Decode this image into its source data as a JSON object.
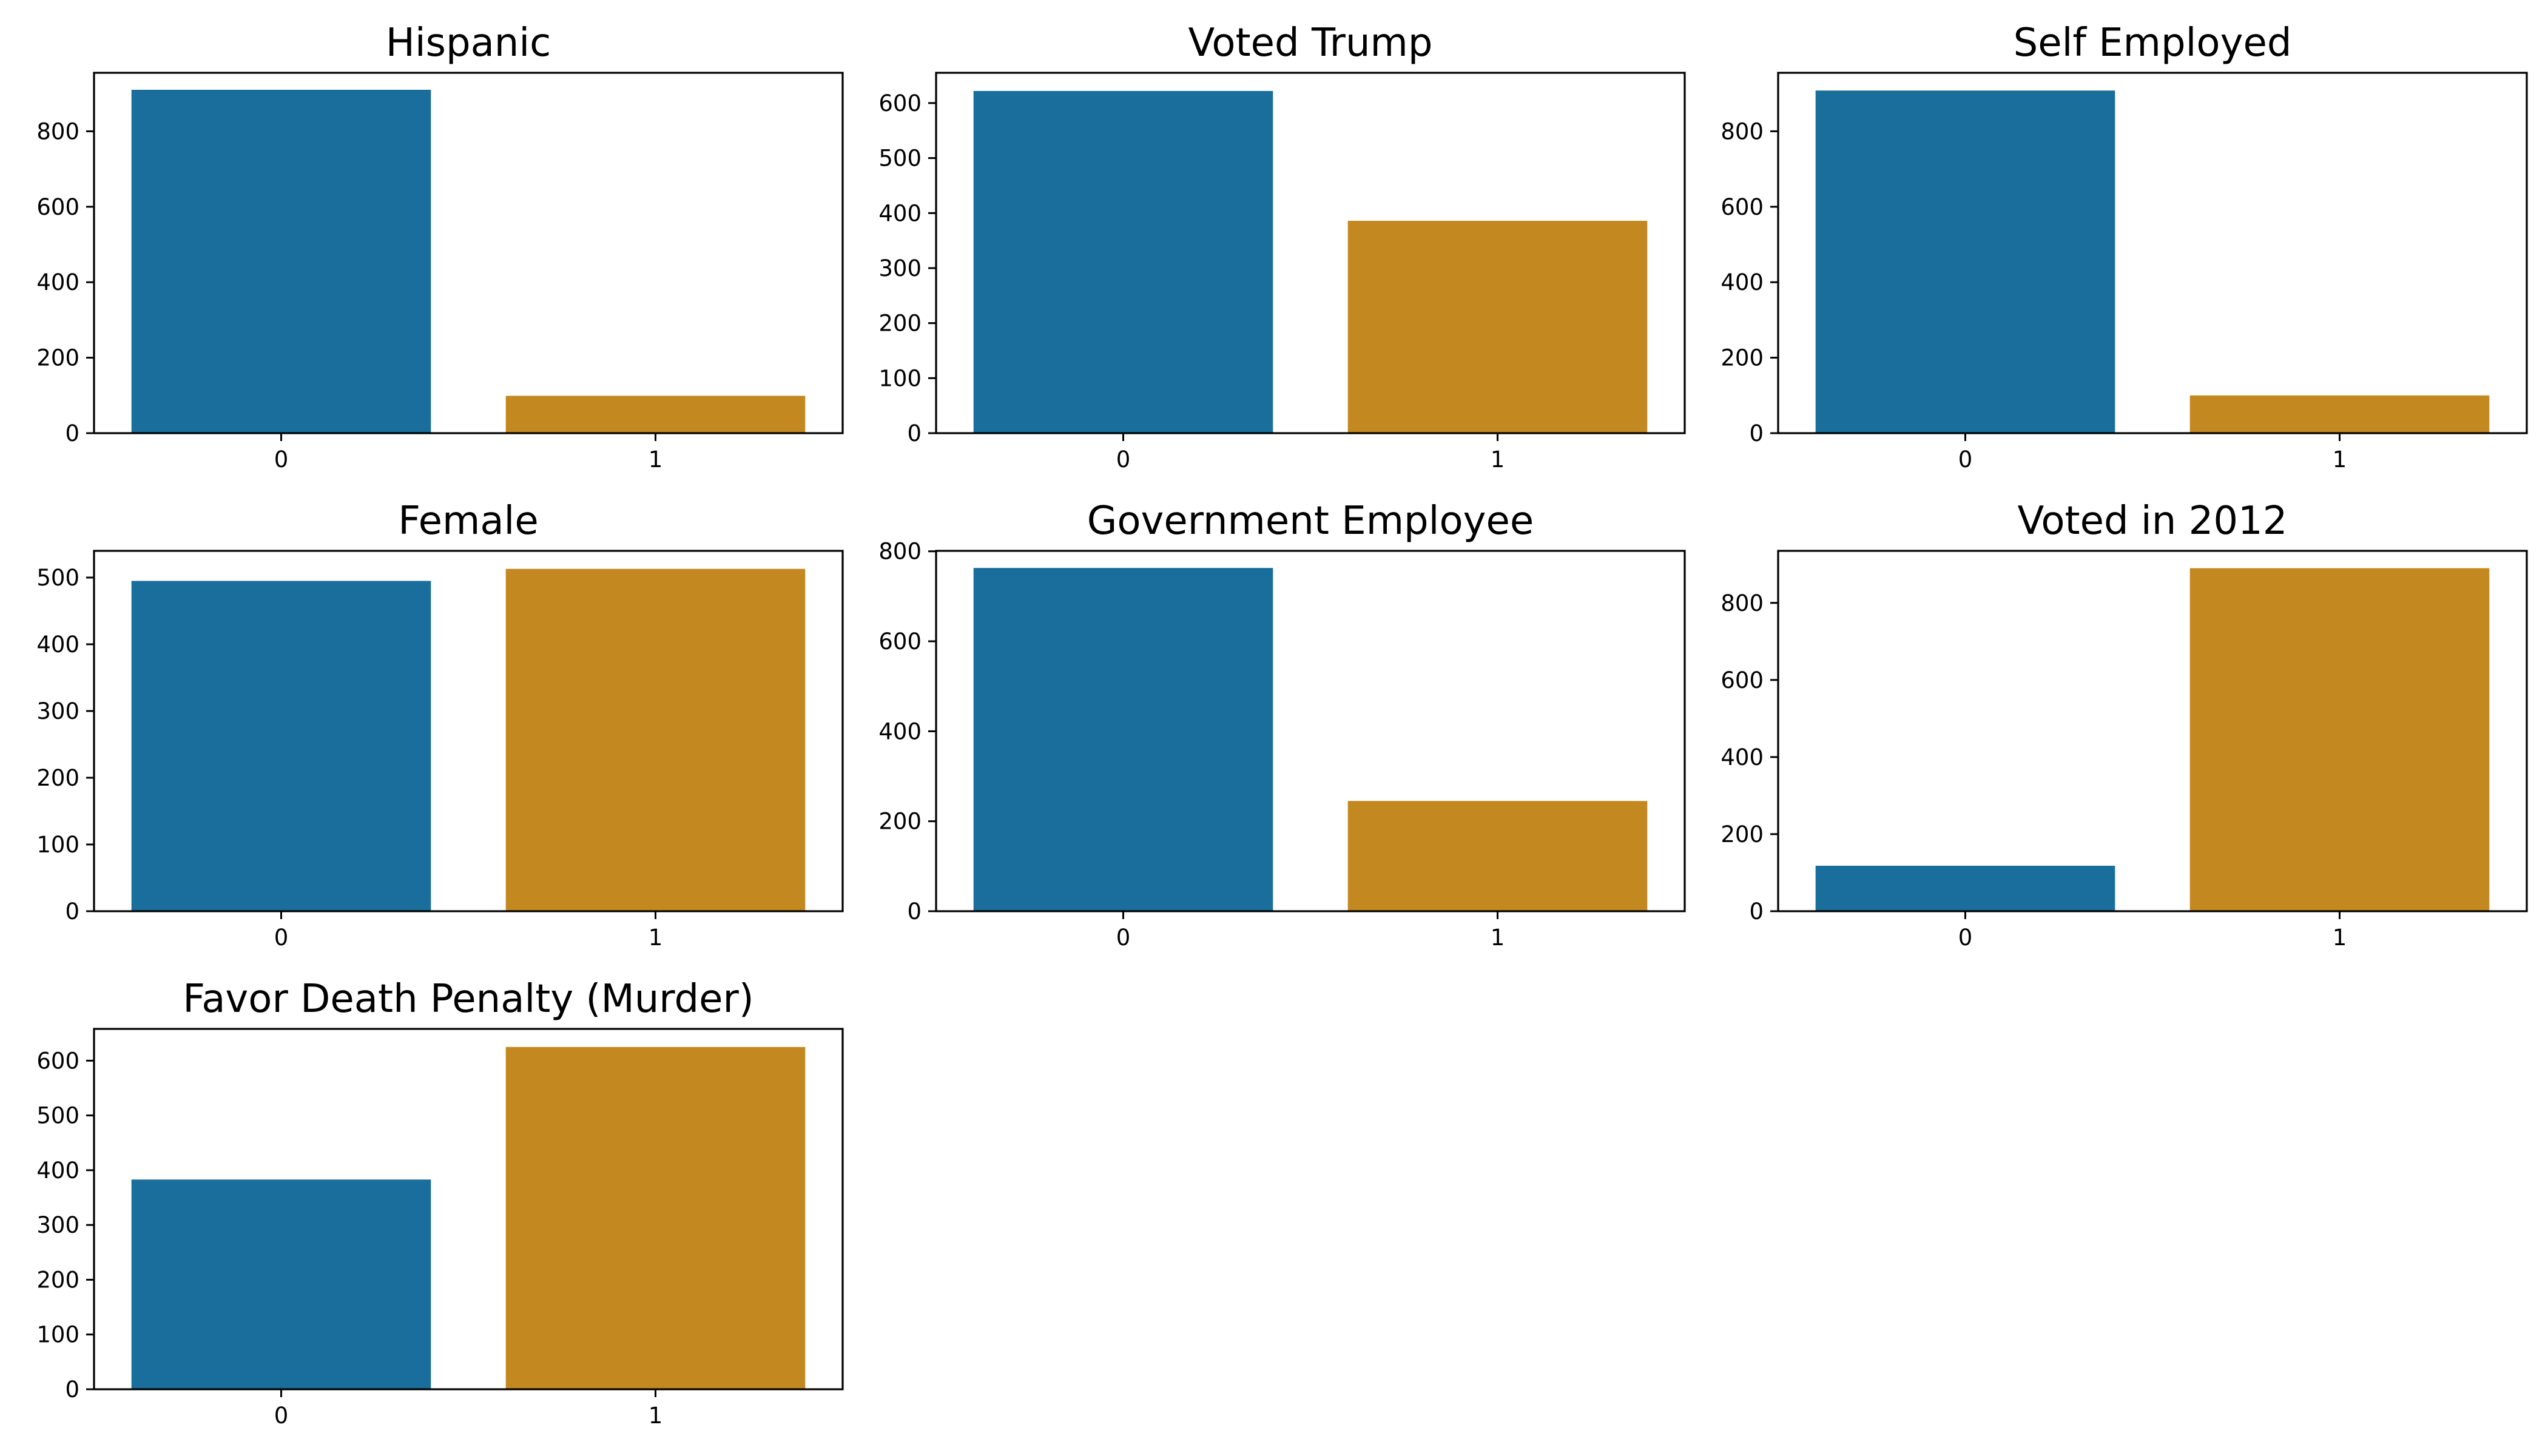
{
  "figure": {
    "bar_colors": [
      "#1a6e9c",
      "#c38920"
    ],
    "axes_color": "#000000",
    "background": "#ffffff"
  },
  "chart_data": [
    {
      "type": "bar",
      "title": "Hispanic",
      "categories": [
        "0",
        "1"
      ],
      "values": [
        910,
        99
      ],
      "ylim": [
        0,
        955
      ],
      "yticks": [
        0,
        200,
        400,
        600,
        800
      ],
      "grid": false
    },
    {
      "type": "bar",
      "title": "Voted Trump",
      "categories": [
        "0",
        "1"
      ],
      "values": [
        622,
        386
      ],
      "ylim": [
        0,
        655
      ],
      "yticks": [
        0,
        100,
        200,
        300,
        400,
        500,
        600
      ],
      "grid": false
    },
    {
      "type": "bar",
      "title": "Self Employed",
      "categories": [
        "0",
        "1"
      ],
      "values": [
        908,
        100
      ],
      "ylim": [
        0,
        955
      ],
      "yticks": [
        0,
        200,
        400,
        600,
        800
      ],
      "grid": false
    },
    {
      "type": "bar",
      "title": "Female",
      "categories": [
        "0",
        "1"
      ],
      "values": [
        495,
        513
      ],
      "ylim": [
        0,
        540
      ],
      "yticks": [
        0,
        100,
        200,
        300,
        400,
        500
      ],
      "grid": false
    },
    {
      "type": "bar",
      "title": "Government Employee",
      "categories": [
        "0",
        "1"
      ],
      "values": [
        763,
        245
      ],
      "ylim": [
        0,
        801
      ],
      "yticks": [
        0,
        200,
        400,
        600,
        800
      ],
      "grid": false
    },
    {
      "type": "bar",
      "title": "Voted in 2012",
      "categories": [
        "0",
        "1"
      ],
      "values": [
        118,
        890
      ],
      "ylim": [
        0,
        935
      ],
      "yticks": [
        0,
        200,
        400,
        600,
        800
      ],
      "grid": false
    },
    {
      "type": "bar",
      "title": "Favor Death Penalty (Murder)",
      "categories": [
        "0",
        "1"
      ],
      "values": [
        383,
        625
      ],
      "ylim": [
        0,
        658
      ],
      "yticks": [
        0,
        100,
        200,
        300,
        400,
        500,
        600
      ],
      "grid": false
    }
  ]
}
